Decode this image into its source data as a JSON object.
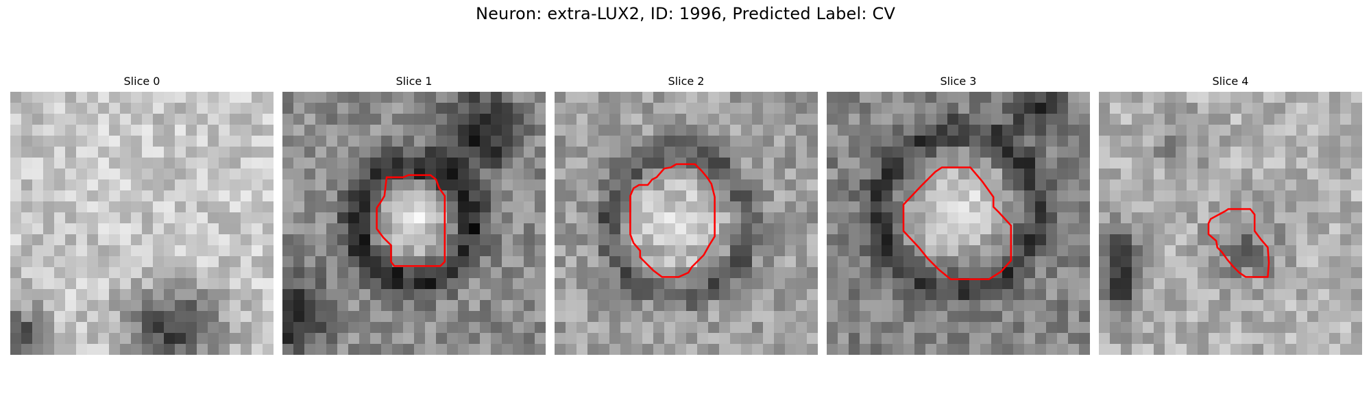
{
  "figure": {
    "title": "Neuron: extra-LUX2, ID: 1996, Predicted Label: CV"
  },
  "panels": [
    {
      "title": "Slice 0",
      "has_contour": false
    },
    {
      "title": "Slice 1",
      "has_contour": true
    },
    {
      "title": "Slice 2",
      "has_contour": true
    },
    {
      "title": "Slice 3",
      "has_contour": true
    },
    {
      "title": "Slice 4",
      "has_contour": true
    }
  ],
  "colors": {
    "contour": "#ff0000",
    "colormap": "grayscale"
  }
}
